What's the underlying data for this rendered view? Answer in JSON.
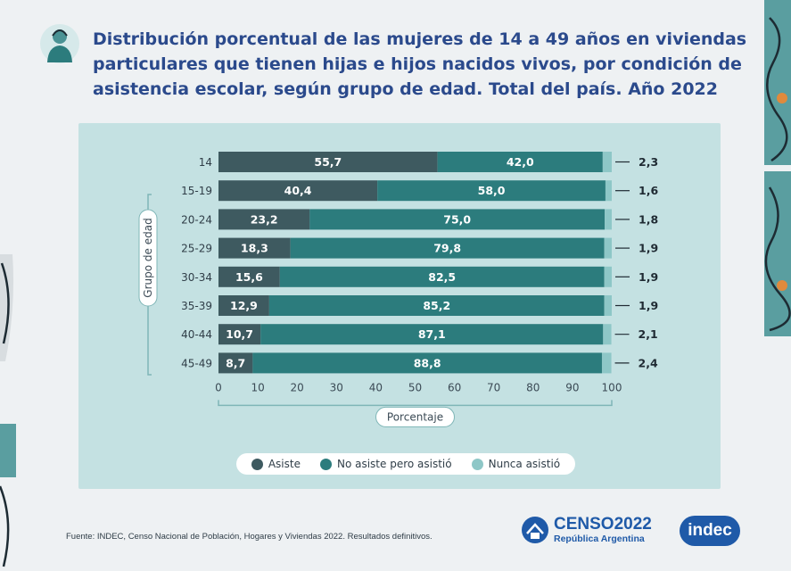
{
  "title": "Distribución porcentual de las mujeres de 14 a 49 años en viviendas particulares que tienen hijas e hijos nacidos vivos, por condición de asistencia escolar, según grupo de edad. Total del país. Año 2022",
  "source": "Fuente: INDEC, Censo Nacional de Población, Hogares y Viviendas 2022. Resultados definitivos.",
  "logos": {
    "censo_name": "CENSO2022",
    "censo_sub": "República Argentina",
    "indec": "indec"
  },
  "colors": {
    "asiste": "#3e5a60",
    "no_asiste": "#2c7c7d",
    "nunca": "#8ec7c7",
    "title": "#2b4a8c",
    "panel": "#c4e1e2"
  },
  "chart_data": {
    "type": "bar",
    "orientation": "horizontal",
    "stacked": true,
    "categories": [
      "14",
      "15-19",
      "20-24",
      "25-29",
      "30-34",
      "35-39",
      "40-44",
      "45-49"
    ],
    "series": [
      {
        "name": "Asiste",
        "values": [
          55.7,
          40.4,
          23.2,
          18.3,
          15.6,
          12.9,
          10.7,
          8.7
        ]
      },
      {
        "name": "No asiste pero asistió",
        "values": [
          42.0,
          58.0,
          75.0,
          79.8,
          82.5,
          85.2,
          87.1,
          88.8
        ]
      },
      {
        "name": "Nunca asistió",
        "values": [
          2.3,
          1.6,
          1.8,
          1.9,
          1.9,
          1.9,
          2.1,
          2.4
        ]
      }
    ],
    "xlabel": "Porcentaje",
    "ylabel": "Grupo de edad",
    "xlim": [
      0,
      100
    ],
    "xticks": [
      0,
      10,
      20,
      30,
      40,
      50,
      60,
      70,
      80,
      90,
      100
    ],
    "legend_position": "bottom",
    "grid": false
  }
}
